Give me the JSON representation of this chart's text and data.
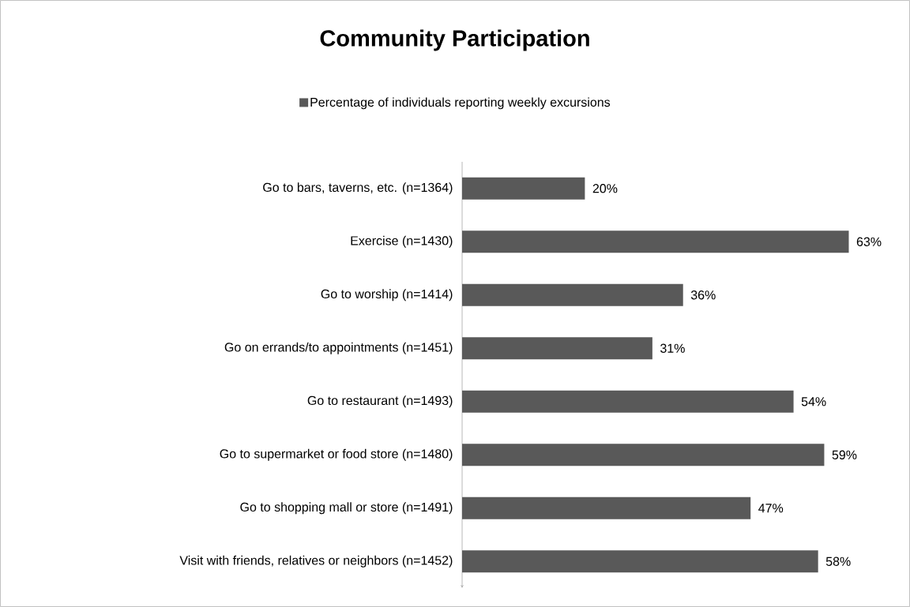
{
  "chart_data": {
    "type": "bar",
    "orientation": "horizontal",
    "title": "Community Participation",
    "categories": [
      "Go to bars, taverns, etc. (n=1364)",
      "Exercise (n=1430)",
      "Go to worship (n=1414)",
      "Go on errands/to appointments (n=1451)",
      "Go to restaurant (n=1493)",
      "Go to supermarket or food store (n=1480)",
      "Go to shopping mall or store (n=1491)",
      "Visit with friends, relatives or neighbors (n=1452)"
    ],
    "series": [
      {
        "name": "Percentage of individuals reporting weekly excursions",
        "color": "#595959",
        "values": [
          20,
          63,
          36,
          31,
          54,
          59,
          47,
          58
        ],
        "value_labels": [
          "20%",
          "63%",
          "36%",
          "31%",
          "54%",
          "59%",
          "47%",
          "58%"
        ]
      }
    ],
    "tick_labels": "y",
    "legend": "top"
  }
}
